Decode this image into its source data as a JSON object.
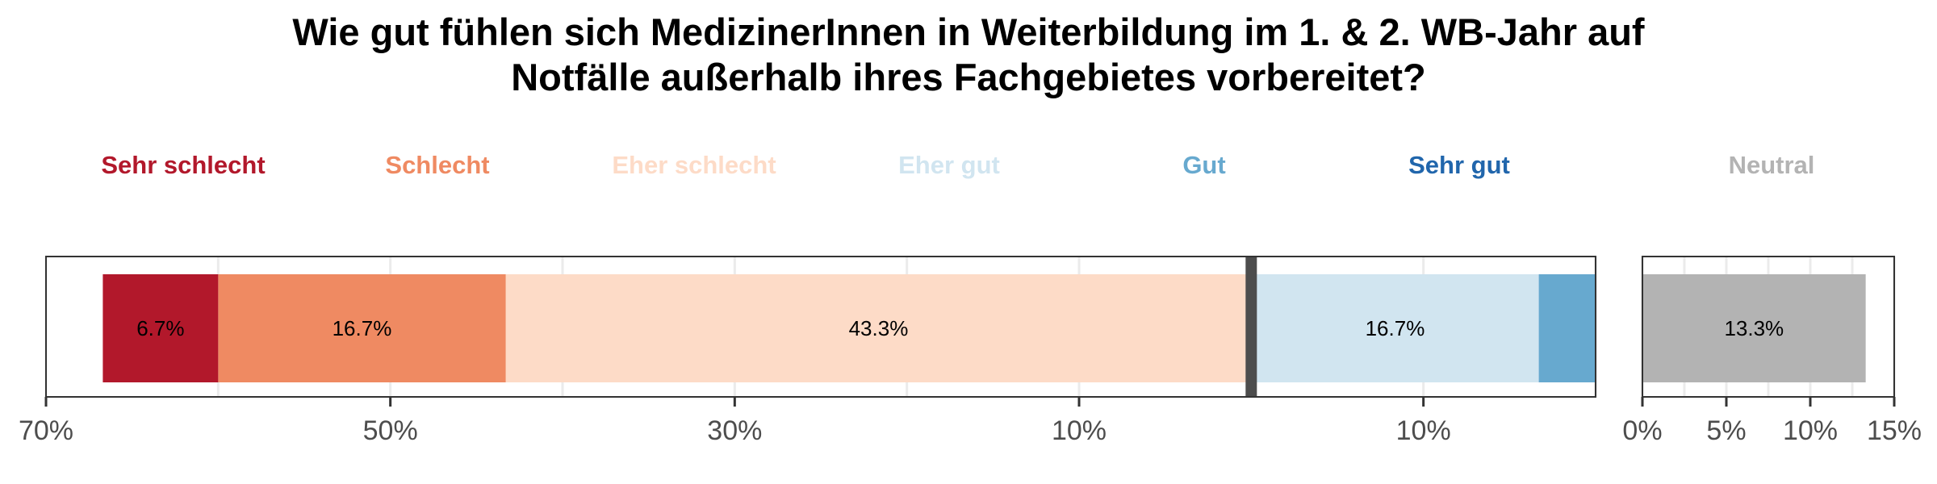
{
  "chart_data": {
    "type": "bar",
    "orientation": "horizontal",
    "stacked": "diverging",
    "title_lines": [
      "Wie gut fühlen sich MedizinerInnen in Weiterbildung im 1. & 2. WB-Jahr auf",
      "Notfälle außerhalb ihres Fachgebietes vorbereitet?"
    ],
    "legend_position": "top",
    "grid": true,
    "series": [
      {
        "name": "Sehr schlecht",
        "value": 6.7,
        "color": "#b2182b",
        "label": "6.7%"
      },
      {
        "name": "Schlecht",
        "value": 16.7,
        "color": "#ef8a62",
        "label": "16.7%"
      },
      {
        "name": "Eher schlecht",
        "value": 43.3,
        "color": "#fddbc7",
        "label": "43.3%"
      },
      {
        "name": "Eher gut",
        "value": 16.7,
        "color": "#d1e5f0",
        "label": "16.7%"
      },
      {
        "name": "Gut",
        "value": 3.3,
        "color": "#67a9cf",
        "label": ""
      },
      {
        "name": "Sehr gut",
        "value": 0,
        "color": "#2166ac",
        "label": ""
      }
    ],
    "neutral": {
      "name": "Neutral",
      "value": 13.3,
      "color": "#b3b3b3",
      "label": "13.3%"
    },
    "main_axis": {
      "xlim": [
        -70,
        20
      ],
      "ticks": [
        -70,
        -50,
        -30,
        -10,
        10
      ],
      "tick_labels": [
        "70%",
        "50%",
        "30%",
        "10%",
        "10%"
      ]
    },
    "neutral_axis": {
      "xlim": [
        0,
        15
      ],
      "ticks": [
        0,
        5,
        10,
        15
      ],
      "tick_labels": [
        "0%",
        "5%",
        "10%",
        "15%"
      ]
    }
  }
}
